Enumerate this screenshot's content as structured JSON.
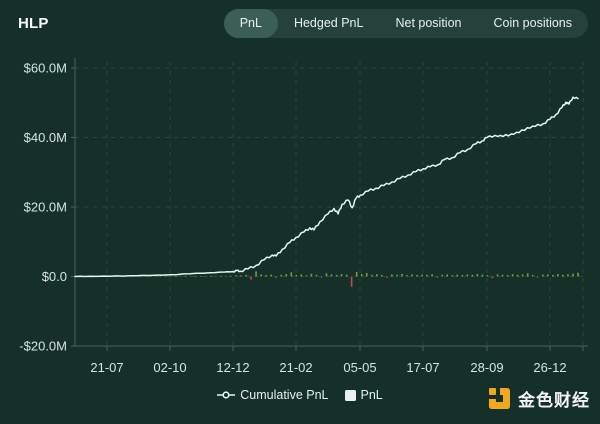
{
  "header": {
    "title": "HLP"
  },
  "tabs": [
    {
      "label": "PnL",
      "active": true
    },
    {
      "label": "Hedged PnL",
      "active": false
    },
    {
      "label": "Net position",
      "active": false
    },
    {
      "label": "Coin positions",
      "active": false
    }
  ],
  "legend": [
    {
      "label": "Cumulative PnL",
      "marker": "line-circle",
      "color": "#e7f6ee"
    },
    {
      "label": "PnL",
      "marker": "square",
      "color": "#e9f2ee"
    }
  ],
  "watermark": {
    "text": "金色财经",
    "logo_color": "#f0a81c"
  },
  "colors": {
    "background": "#152f29",
    "tab_bar": "#24423b",
    "tab_active": "#3c5f55",
    "grid": "#2b473f",
    "axis": "#46635b",
    "axis_text": "#d7e4df",
    "line": "#e7f6ee",
    "bar_positive": "#7d9c40",
    "bar_negative": "#c64848"
  },
  "chart_data": {
    "type": "line+bar",
    "title": "HLP PnL",
    "ylim": [
      -20,
      60
    ],
    "grid": "dashed",
    "legend_position": "bottom",
    "y_ticks": [
      {
        "value": 60,
        "label": "$60.0M"
      },
      {
        "value": 40,
        "label": "$40.0M"
      },
      {
        "value": 20,
        "label": "$20.0M"
      },
      {
        "value": 0,
        "label": "$0.0"
      },
      {
        "value": -20,
        "label": "-$20.0M"
      }
    ],
    "x_ticks": [
      {
        "t": 0.0636,
        "label": "21-07"
      },
      {
        "t": 0.1889,
        "label": "02-10"
      },
      {
        "t": 0.3141,
        "label": "12-12"
      },
      {
        "t": 0.4394,
        "label": "21-02"
      },
      {
        "t": 0.5666,
        "label": "05-05"
      },
      {
        "t": 0.6919,
        "label": "17-07"
      },
      {
        "t": 0.8191,
        "label": "28-09"
      },
      {
        "t": 0.9443,
        "label": "26-12"
      }
    ],
    "extra_gridline_t": 1.01,
    "series": [
      {
        "name": "Cumulative PnL",
        "type": "line",
        "color": "#e7f6ee",
        "unit": "USD millions",
        "points": [
          [
            0.0,
            0.0
          ],
          [
            0.03,
            0.05
          ],
          [
            0.07,
            0.1
          ],
          [
            0.109,
            0.2
          ],
          [
            0.149,
            0.3
          ],
          [
            0.189,
            0.5
          ],
          [
            0.229,
            0.8
          ],
          [
            0.268,
            1.1
          ],
          [
            0.298,
            1.3
          ],
          [
            0.314,
            1.4
          ],
          [
            0.322,
            1.7
          ],
          [
            0.328,
            1.5
          ],
          [
            0.344,
            2.2
          ],
          [
            0.36,
            3.2
          ],
          [
            0.376,
            4.8
          ],
          [
            0.392,
            6.2
          ],
          [
            0.4,
            5.9
          ],
          [
            0.412,
            7.8
          ],
          [
            0.427,
            9.8
          ],
          [
            0.439,
            11.2
          ],
          [
            0.455,
            12.8
          ],
          [
            0.467,
            14.0
          ],
          [
            0.475,
            13.4
          ],
          [
            0.487,
            15.8
          ],
          [
            0.503,
            18.0
          ],
          [
            0.515,
            19.6
          ],
          [
            0.523,
            18.0
          ],
          [
            0.531,
            20.8
          ],
          [
            0.543,
            22.0
          ],
          [
            0.551,
            19.8
          ],
          [
            0.559,
            22.6
          ],
          [
            0.567,
            23.4
          ],
          [
            0.583,
            24.6
          ],
          [
            0.598,
            25.4
          ],
          [
            0.614,
            26.2
          ],
          [
            0.63,
            27.2
          ],
          [
            0.646,
            28.2
          ],
          [
            0.662,
            29.2
          ],
          [
            0.678,
            30.2
          ],
          [
            0.692,
            31.0
          ],
          [
            0.706,
            31.6
          ],
          [
            0.722,
            32.2
          ],
          [
            0.734,
            33.6
          ],
          [
            0.75,
            34.2
          ],
          [
            0.765,
            35.6
          ],
          [
            0.781,
            36.6
          ],
          [
            0.797,
            38.2
          ],
          [
            0.809,
            39.0
          ],
          [
            0.819,
            40.0
          ],
          [
            0.835,
            40.6
          ],
          [
            0.851,
            40.3
          ],
          [
            0.867,
            41.0
          ],
          [
            0.883,
            41.4
          ],
          [
            0.899,
            42.8
          ],
          [
            0.915,
            43.2
          ],
          [
            0.931,
            44.0
          ],
          [
            0.944,
            45.2
          ],
          [
            0.956,
            46.6
          ],
          [
            0.968,
            48.6
          ],
          [
            0.976,
            50.2
          ],
          [
            0.982,
            49.6
          ],
          [
            0.99,
            51.6
          ],
          [
            1.0,
            51.2
          ]
        ]
      },
      {
        "name": "PnL",
        "type": "bar",
        "color_positive": "#7d9c40",
        "color_negative": "#c64848",
        "unit": "USD millions",
        "t_start": 0,
        "t_end": 1,
        "values": [
          0.05,
          0.04,
          0.06,
          0.05,
          0.07,
          0.05,
          0.06,
          0.08,
          0.06,
          0.05,
          0.07,
          0.06,
          0.08,
          0.07,
          0.06,
          0.08,
          0.07,
          0.09,
          0.08,
          0.1,
          0.09,
          0.1,
          0.12,
          0.1,
          0.12,
          0.14,
          0.12,
          0.15,
          0.13,
          0.16,
          0.18,
          0.2,
          0.35,
          0.3,
          0.45,
          -0.9,
          1.5,
          0.6,
          0.4,
          0.55,
          -0.35,
          0.5,
          0.7,
          1.2,
          0.45,
          0.6,
          0.35,
          0.8,
          0.5,
          -0.3,
          0.9,
          0.6,
          0.45,
          0.7,
          0.55,
          -3.0,
          1.3,
          0.7,
          1.0,
          0.5,
          0.65,
          0.45,
          -0.4,
          0.6,
          0.5,
          0.75,
          0.4,
          0.6,
          0.45,
          0.55,
          0.5,
          0.65,
          -0.3,
          0.5,
          0.6,
          0.4,
          0.55,
          0.45,
          0.6,
          0.5,
          0.7,
          0.55,
          0.4,
          -0.5,
          0.6,
          0.5,
          0.45,
          0.65,
          0.5,
          0.6,
          0.9,
          0.5,
          -0.3,
          0.55,
          0.6,
          0.45,
          0.7,
          0.5,
          0.65,
          0.8,
          1.1
        ]
      }
    ]
  }
}
